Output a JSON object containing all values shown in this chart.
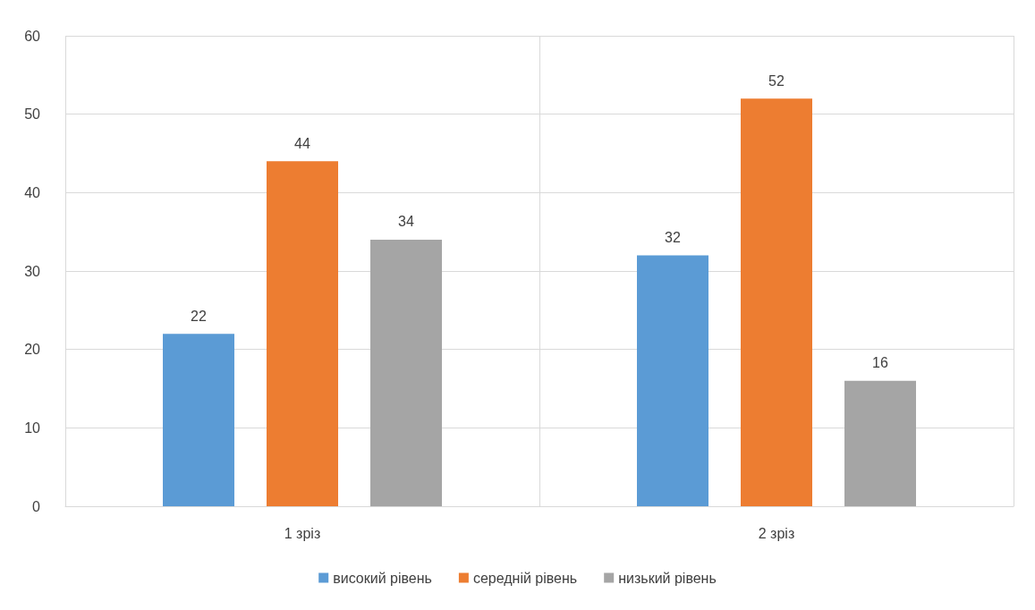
{
  "chart_data": {
    "type": "bar",
    "categories": [
      "1 зріз",
      "2 зріз"
    ],
    "series": [
      {
        "name": "високий рівень",
        "color": "#5b9bd5",
        "values": [
          22,
          32
        ]
      },
      {
        "name": "середній рівень",
        "color": "#ed7d31",
        "values": [
          44,
          52
        ]
      },
      {
        "name": "низький рівень",
        "color": "#a5a5a5",
        "values": [
          34,
          16
        ]
      }
    ],
    "ylim": [
      0,
      60
    ],
    "yticks": [
      0,
      10,
      20,
      30,
      40,
      50,
      60
    ],
    "grid": true,
    "legend": "bottom",
    "data_labels": true
  }
}
